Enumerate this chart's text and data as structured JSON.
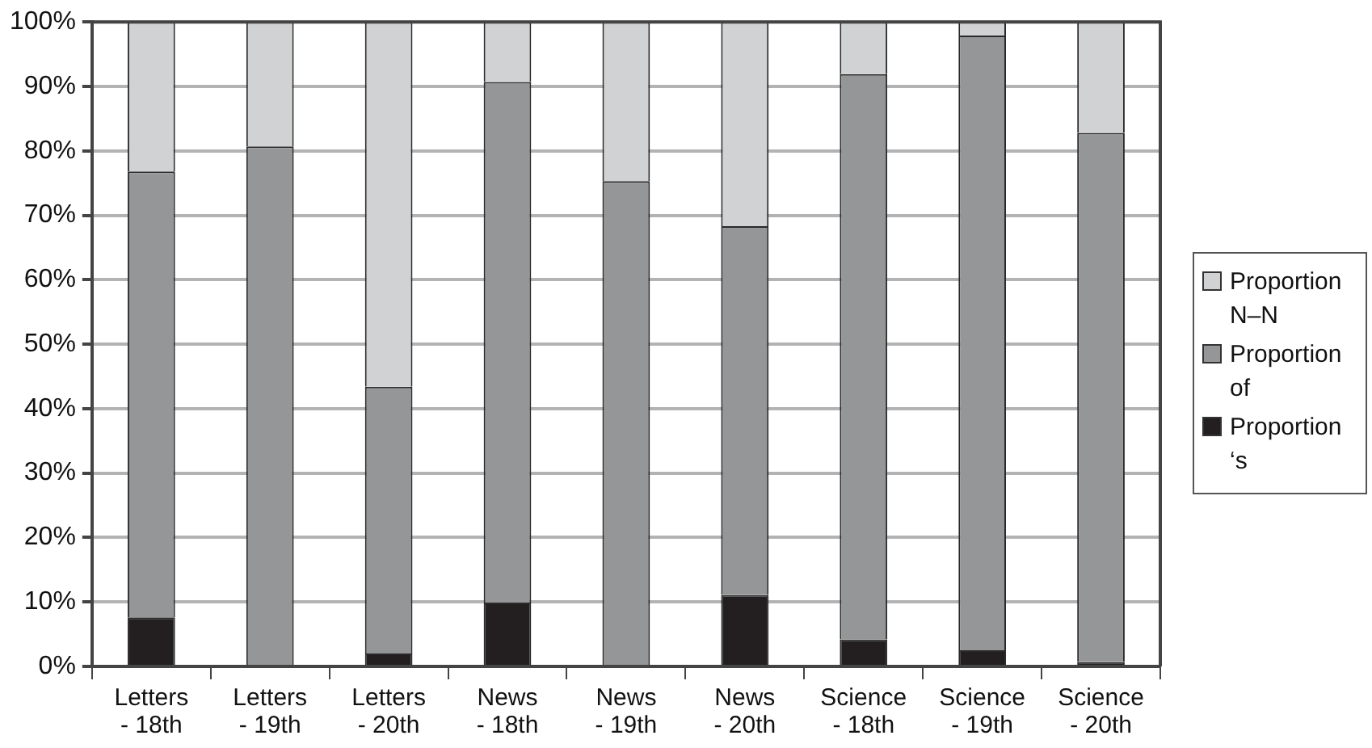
{
  "chart_data": {
    "type": "bar",
    "stacked": true,
    "categories": [
      "Letters\n- 18th",
      "Letters\n- 19th",
      "Letters\n- 20th",
      "News\n- 18th",
      "News\n- 19th",
      "News\n- 20th",
      "Science\n- 18th",
      "Science\n- 19th",
      "Science\n- 20th"
    ],
    "series": [
      {
        "name": "Proportion ‘s",
        "color": "#231f20",
        "values": [
          7.6,
          0,
          2.0,
          9.9,
          0,
          11.1,
          4.2,
          2.5,
          0.7
        ]
      },
      {
        "name": "Proportion of",
        "color": "#959698",
        "values": [
          69.2,
          80.7,
          41.4,
          80.8,
          75.3,
          57.2,
          87.7,
          95.4,
          82.1
        ]
      },
      {
        "name": "Proportion N–N",
        "color": "#d1d2d4",
        "values": [
          23.2,
          19.3,
          56.6,
          9.3,
          24.7,
          31.7,
          8.1,
          2.1,
          17.2
        ]
      }
    ],
    "ylim": [
      0,
      100
    ],
    "yticks": [
      {
        "value": 0,
        "label": "0%"
      },
      {
        "value": 10,
        "label": "10%"
      },
      {
        "value": 20,
        "label": "20%"
      },
      {
        "value": 30,
        "label": "30%"
      },
      {
        "value": 40,
        "label": "40%"
      },
      {
        "value": 50,
        "label": "50%"
      },
      {
        "value": 60,
        "label": "60%"
      },
      {
        "value": 70,
        "label": "70%"
      },
      {
        "value": 80,
        "label": "80%"
      },
      {
        "value": 90,
        "label": "90%"
      },
      {
        "value": 100,
        "label": "100%"
      }
    ],
    "grid": "y",
    "legend": "right"
  }
}
